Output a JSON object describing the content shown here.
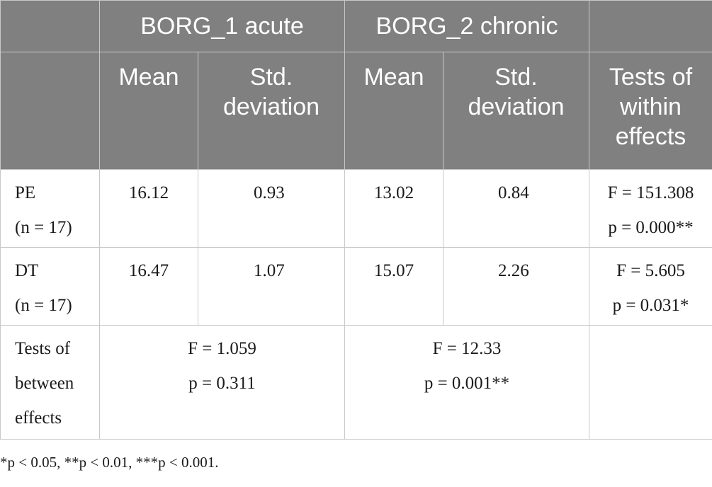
{
  "header": {
    "group1": "BORG_1 acute",
    "group2": "BORG_2 chronic",
    "mean": "Mean",
    "std_line1": "Std.",
    "std_line2": "deviation",
    "within_line1": "Tests of",
    "within_line2": "within",
    "within_line3": "effects"
  },
  "rows": [
    {
      "label": "PE",
      "n_label": "(n = 17)",
      "b1_mean": "16.12",
      "b1_std": "0.93",
      "b2_mean": "13.02",
      "b2_std": "0.84",
      "within_f": "F = 151.308",
      "within_p": "p = 0.000**"
    },
    {
      "label": "DT",
      "n_label": "(n = 17)",
      "b1_mean": "16.47",
      "b1_std": "1.07",
      "b2_mean": "15.07",
      "b2_std": "2.26",
      "within_f": "F = 5.605",
      "within_p": "p = 0.031*"
    }
  ],
  "between": {
    "label_line1": "Tests of",
    "label_line2": "between",
    "label_line3": "effects",
    "b1_f": "F = 1.059",
    "b1_p": "p = 0.311",
    "b2_f": "F = 12.33",
    "b2_p": "p = 0.001**"
  },
  "footnote": "*p < 0.05, **p < 0.01, ***p < 0.001."
}
